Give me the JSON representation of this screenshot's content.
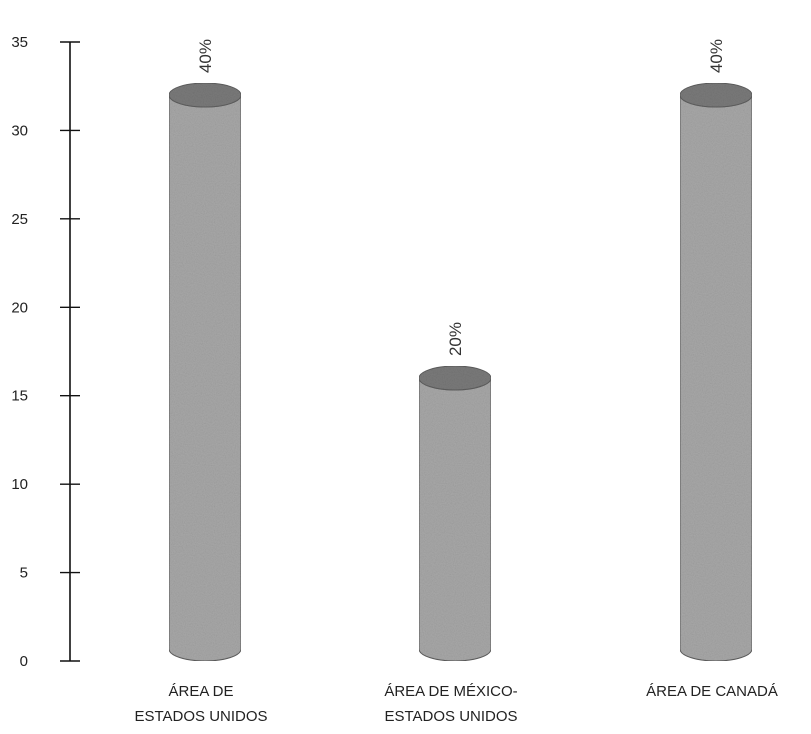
{
  "chart_data": {
    "type": "bar",
    "title": "",
    "xlabel": "",
    "ylabel": "",
    "ylim": [
      0,
      35
    ],
    "yticks": [
      0,
      5,
      10,
      15,
      20,
      25,
      30,
      35
    ],
    "grid": false,
    "legend": "none",
    "categories": [
      [
        "ÁREA DE",
        "ESTADOS UNIDOS"
      ],
      [
        "ÁREA DE MÉXICO-",
        "ESTADOS UNIDOS"
      ],
      [
        "ÁREA DE CANADÁ"
      ]
    ],
    "values": [
      32,
      16,
      32
    ],
    "data_labels": [
      "40%",
      "20%",
      "40%"
    ],
    "bar_style": "cylinder",
    "colors": {
      "bar_fill": "#a8a8a8",
      "bar_top": "#7a7a7a",
      "bar_edge": "#5e5e5e",
      "axis": "#111111"
    }
  }
}
